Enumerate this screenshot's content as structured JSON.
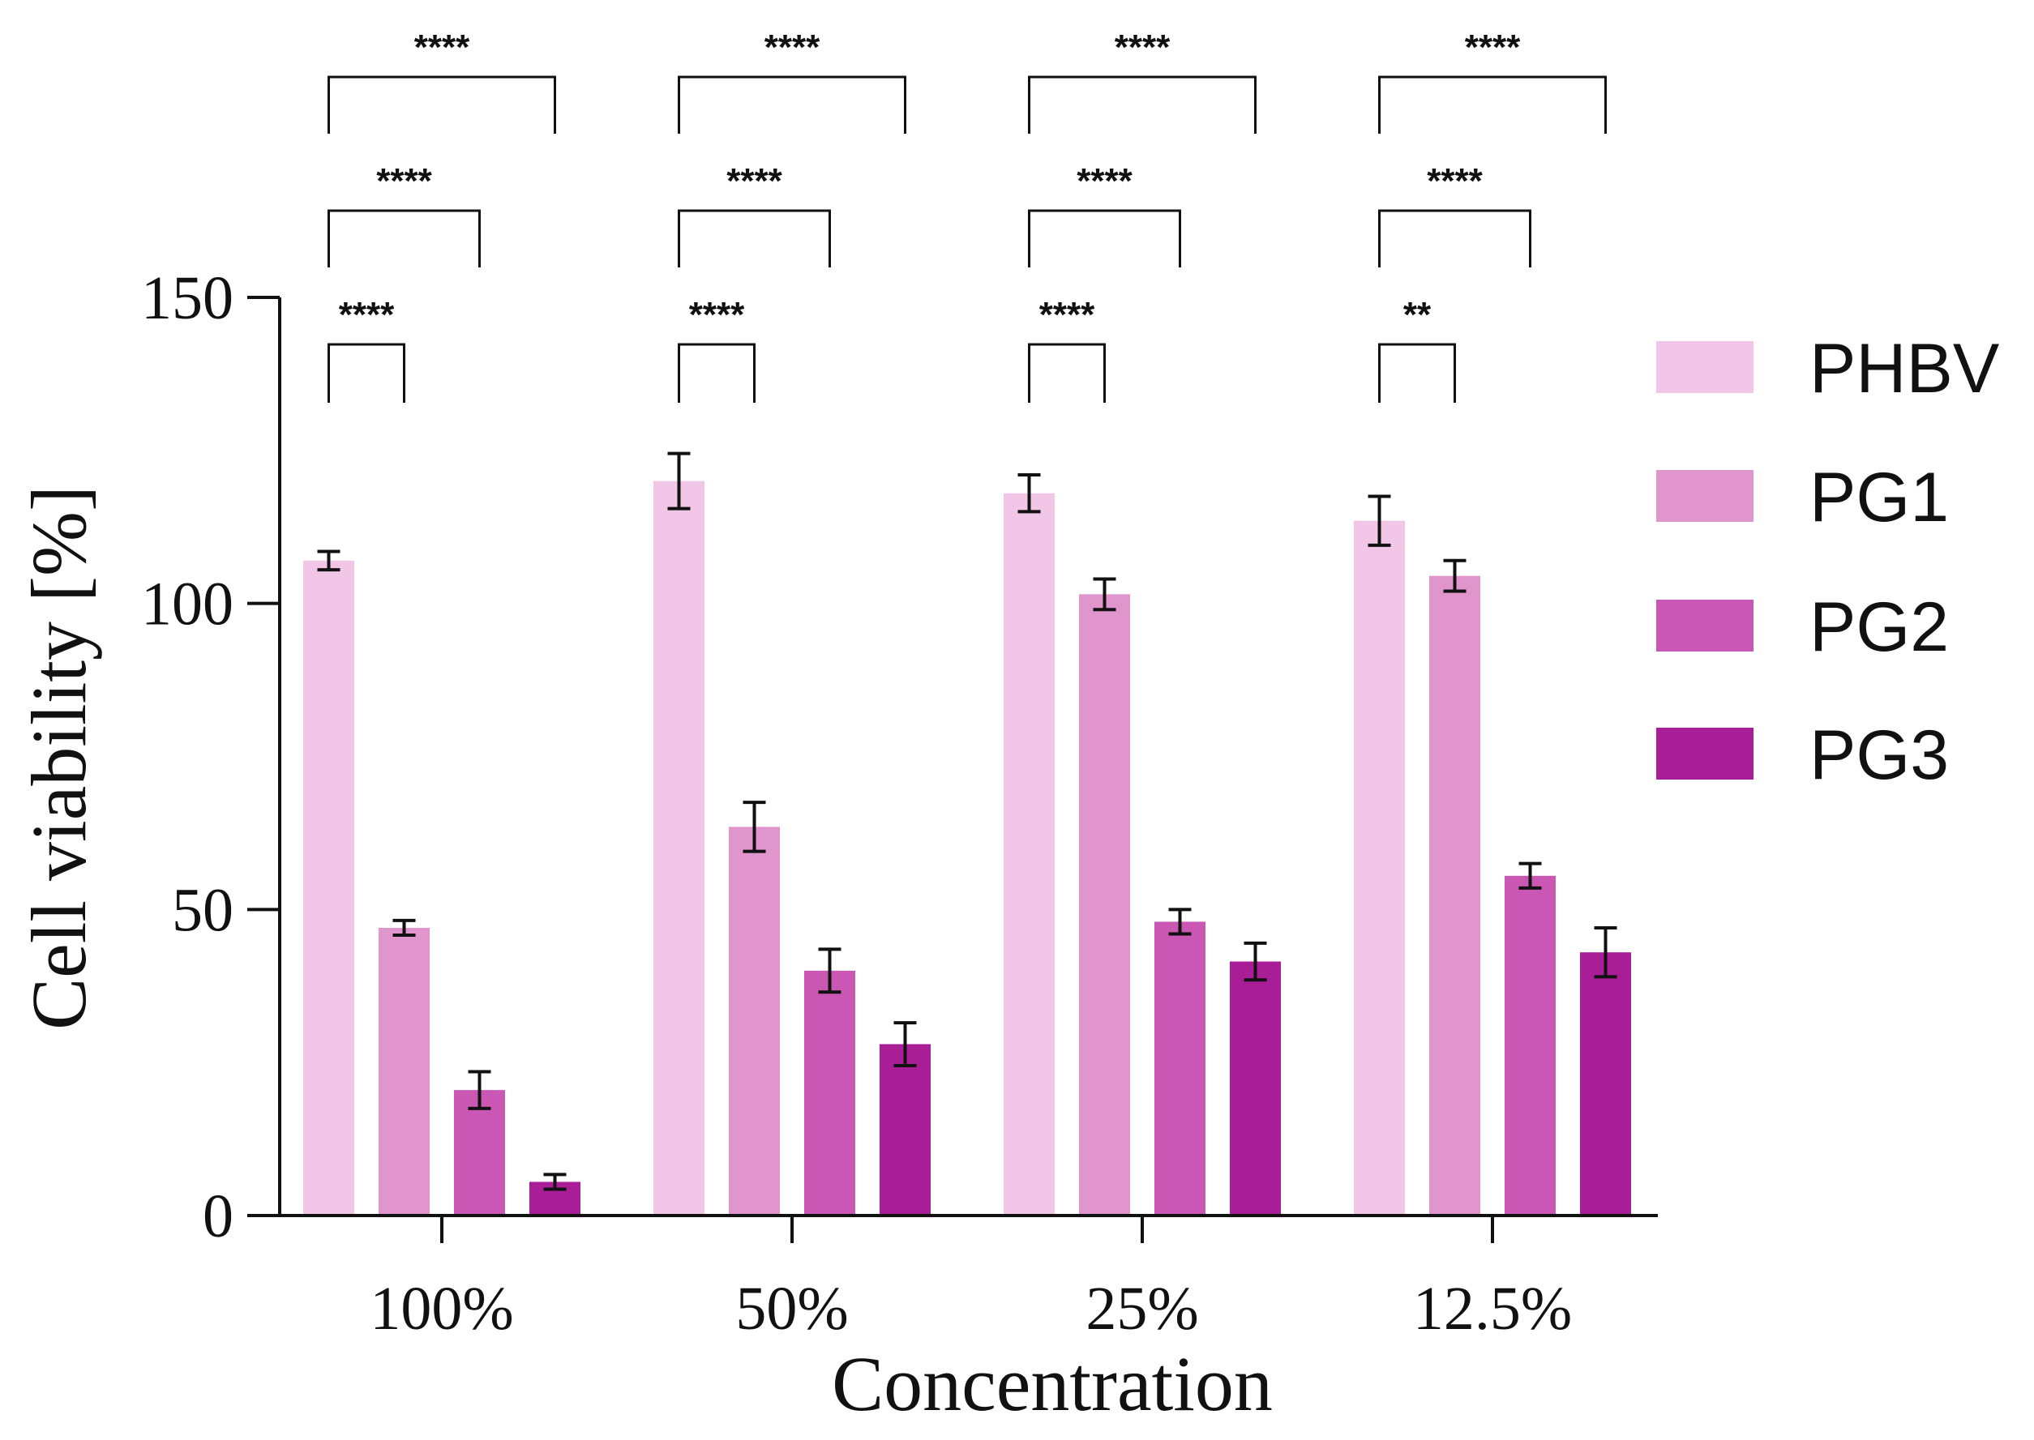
{
  "chart_data": {
    "type": "bar",
    "title": "",
    "xlabel": "Concentration",
    "ylabel": "Cell viability [%]",
    "ylim": [
      0,
      150
    ],
    "yticks": [
      "0",
      "50",
      "100",
      "150"
    ],
    "categories": [
      "100%",
      "50%",
      "25%",
      "12.5%"
    ],
    "series": [
      {
        "name": "PHBV",
        "color": "#f1c6e6",
        "values": [
          107,
          120,
          118,
          113.5
        ],
        "errors": [
          1.5,
          4.5,
          3,
          4
        ]
      },
      {
        "name": "PG1",
        "color": "#e095cd",
        "values": [
          47,
          63.5,
          101.5,
          104.5
        ],
        "errors": [
          1.2,
          4,
          2.5,
          2.5
        ]
      },
      {
        "name": "PG2",
        "color": "#c957b3",
        "values": [
          20.5,
          40,
          48,
          55.5
        ],
        "errors": [
          3,
          3.5,
          2,
          2
        ]
      },
      {
        "name": "PG3",
        "color": "#a91d97",
        "values": [
          5.5,
          28,
          41.5,
          43
        ],
        "errors": [
          1.2,
          3.5,
          3,
          4
        ]
      }
    ],
    "significance": [
      {
        "category": 0,
        "from": 0,
        "to": 1,
        "label": "****"
      },
      {
        "category": 0,
        "from": 0,
        "to": 2,
        "label": "****"
      },
      {
        "category": 0,
        "from": 0,
        "to": 3,
        "label": "****"
      },
      {
        "category": 1,
        "from": 0,
        "to": 1,
        "label": "****"
      },
      {
        "category": 1,
        "from": 0,
        "to": 2,
        "label": "****"
      },
      {
        "category": 1,
        "from": 0,
        "to": 3,
        "label": "****"
      },
      {
        "category": 2,
        "from": 0,
        "to": 1,
        "label": "****"
      },
      {
        "category": 2,
        "from": 0,
        "to": 2,
        "label": "****"
      },
      {
        "category": 2,
        "from": 0,
        "to": 3,
        "label": "****"
      },
      {
        "category": 3,
        "from": 0,
        "to": 1,
        "label": "**"
      },
      {
        "category": 3,
        "from": 0,
        "to": 2,
        "label": "****"
      },
      {
        "category": 3,
        "from": 0,
        "to": 3,
        "label": "****"
      }
    ],
    "grid": false,
    "legend_position": "right"
  }
}
